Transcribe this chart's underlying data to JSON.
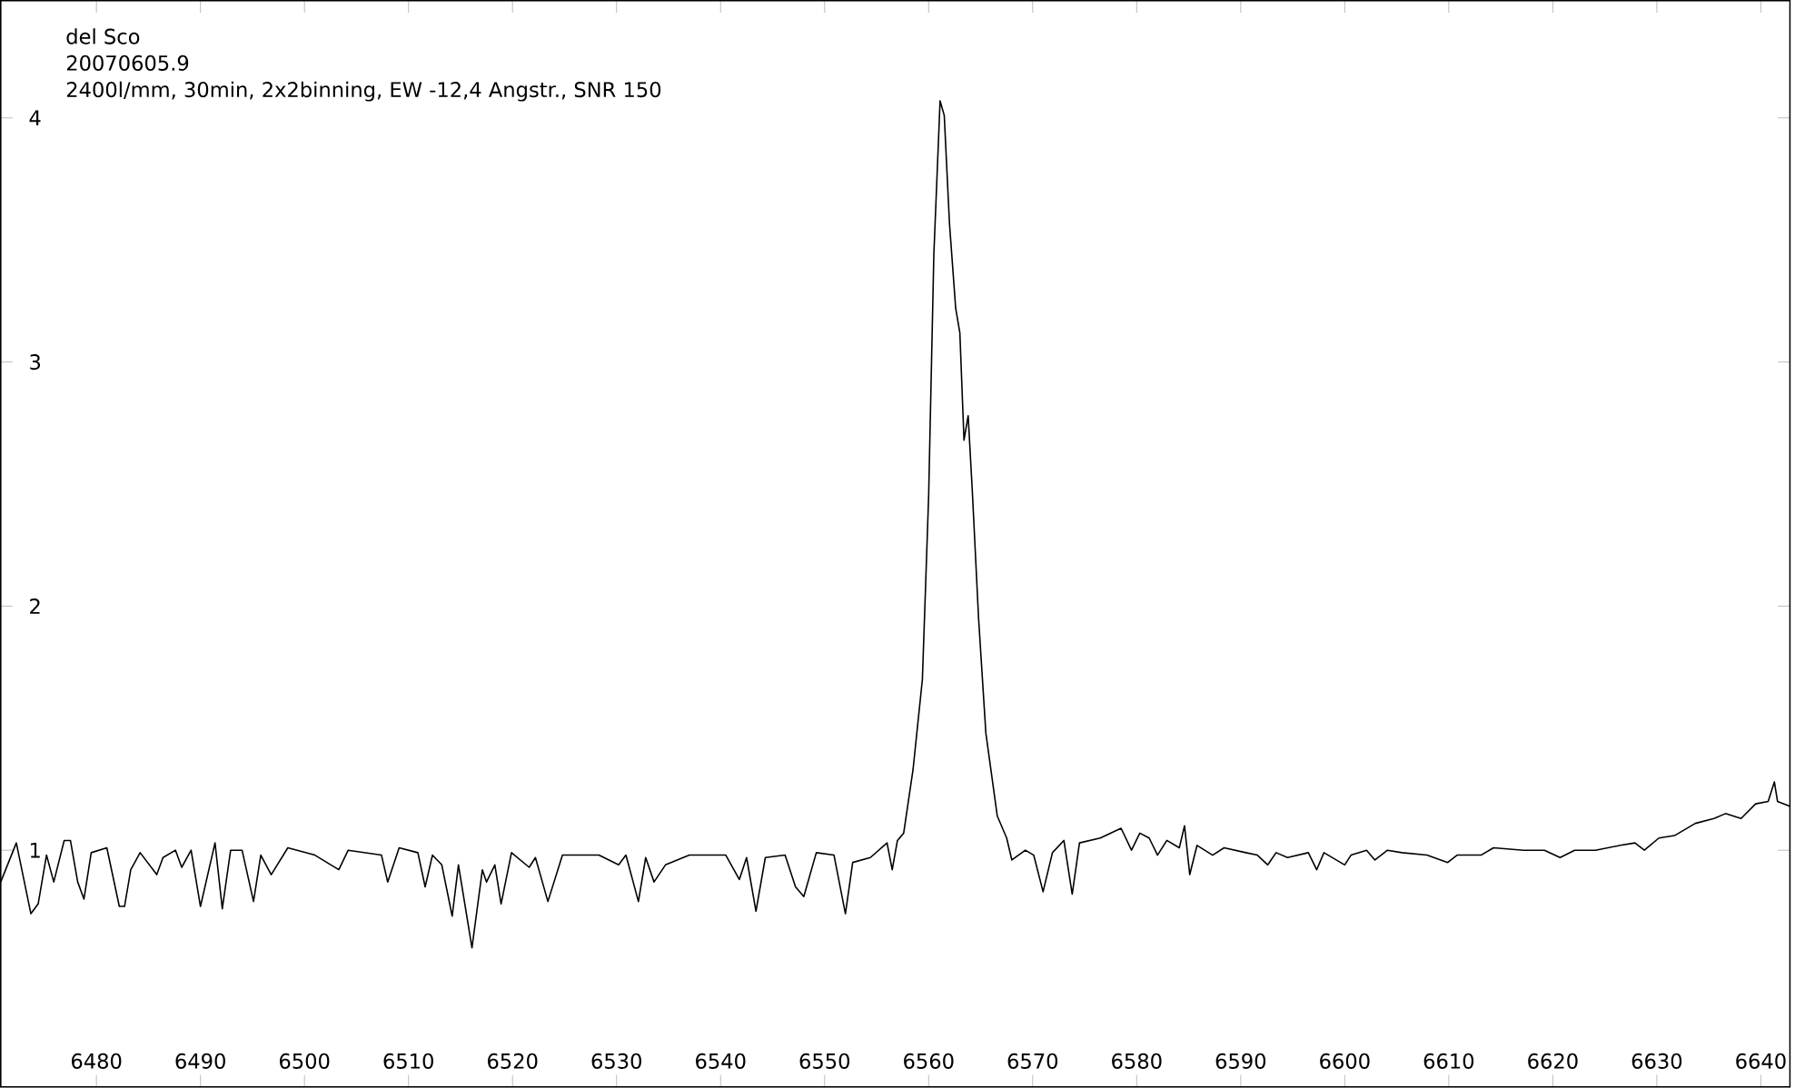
{
  "chart_data": {
    "type": "line",
    "title": "del Sco",
    "subtitle": "20070605.9",
    "annotations": [
      "2400l/mm, 30min, 2x2binning, EW -12,4 Angstr., SNR 150"
    ],
    "xlim": [
      6470.8,
      6642.8
    ],
    "ylim": [
      0.03,
      4.48
    ],
    "xticks": [
      6480,
      6490,
      6500,
      6510,
      6520,
      6530,
      6540,
      6550,
      6560,
      6570,
      6580,
      6590,
      6600,
      6610,
      6620,
      6630,
      6640
    ],
    "yticks": [
      1,
      2,
      3,
      4
    ],
    "marker": "none",
    "line_style": "solid",
    "series": [
      {
        "color": "#000000",
        "x": [
          6470.8,
          6472.3,
          6473.7,
          6474.4,
          6475.2,
          6475.9,
          6476.9,
          6477.5,
          6478.2,
          6478.8,
          6479.5,
          6481.0,
          6482.2,
          6482.7,
          6483.3,
          6484.2,
          6485.8,
          6486.4,
          6487.6,
          6488.2,
          6489.1,
          6490.0,
          6491.4,
          6492.1,
          6492.9,
          6494.0,
          6495.1,
          6495.8,
          6496.8,
          6498.4,
          6501.0,
          6503.3,
          6504.2,
          6507.4,
          6508.0,
          6509.1,
          6510.9,
          6511.6,
          6512.3,
          6513.2,
          6514.2,
          6514.8,
          6516.1,
          6517.1,
          6517.5,
          6518.3,
          6518.9,
          6519.9,
          6521.6,
          6522.2,
          6523.4,
          6524.8,
          6528.3,
          6530.2,
          6530.9,
          6532.1,
          6532.8,
          6533.6,
          6534.7,
          6537.0,
          6540.5,
          6541.8,
          6542.5,
          6543.4,
          6544.3,
          6546.2,
          6547.2,
          6548.0,
          6549.2,
          6550.9,
          6552.0,
          6552.7,
          6554.4,
          6556.0,
          6556.5,
          6557.0,
          6557.6,
          6558.5,
          6559.4,
          6560.0,
          6560.5,
          6561.1,
          6561.5,
          6562.0,
          6562.6,
          6563.0,
          6563.4,
          6563.8,
          6564.2,
          6564.8,
          6565.5,
          6566.6,
          6567.5,
          6568.0,
          6569.3,
          6570.1,
          6571.0,
          6571.9,
          6573.0,
          6573.8,
          6574.5,
          6576.5,
          6578.5,
          6579.5,
          6580.3,
          6581.2,
          6582.0,
          6582.9,
          6584.1,
          6584.6,
          6585.1,
          6585.8,
          6587.3,
          6588.4,
          6590.5,
          6591.6,
          6592.6,
          6593.4,
          6594.5,
          6596.5,
          6597.3,
          6598.0,
          6600.0,
          6600.6,
          6602.1,
          6602.9,
          6604.1,
          6605.5,
          6607.9,
          6609.9,
          6610.8,
          6613.1,
          6614.3,
          6617.2,
          6619.2,
          6620.7,
          6622.1,
          6624.1,
          6626.5,
          6627.9,
          6628.8,
          6630.2,
          6631.7,
          6633.7,
          6635.5,
          6636.6,
          6638.1,
          6639.5,
          6640.7,
          6641.3,
          6641.6,
          6642.8
        ],
        "values": [
          0.87,
          1.03,
          0.74,
          0.78,
          0.98,
          0.87,
          1.04,
          1.04,
          0.87,
          0.8,
          0.99,
          1.01,
          0.77,
          0.77,
          0.92,
          0.99,
          0.9,
          0.97,
          1.0,
          0.93,
          1.0,
          0.77,
          1.03,
          0.76,
          1.0,
          1.0,
          0.79,
          0.98,
          0.9,
          1.01,
          0.98,
          0.92,
          1.0,
          0.98,
          0.87,
          1.01,
          0.99,
          0.85,
          0.98,
          0.94,
          0.73,
          0.94,
          0.6,
          0.92,
          0.87,
          0.94,
          0.78,
          0.99,
          0.93,
          0.97,
          0.79,
          0.98,
          0.98,
          0.94,
          0.98,
          0.79,
          0.97,
          0.87,
          0.94,
          0.98,
          0.98,
          0.88,
          0.97,
          0.75,
          0.97,
          0.98,
          0.85,
          0.81,
          0.99,
          0.98,
          0.74,
          0.95,
          0.97,
          1.03,
          0.92,
          1.04,
          1.07,
          1.33,
          1.7,
          2.45,
          3.44,
          4.07,
          4.01,
          3.57,
          3.22,
          3.12,
          2.68,
          2.78,
          2.47,
          1.95,
          1.48,
          1.14,
          1.05,
          0.96,
          1.0,
          0.98,
          0.83,
          0.99,
          1.04,
          0.82,
          1.03,
          1.05,
          1.09,
          1.0,
          1.07,
          1.05,
          0.98,
          1.04,
          1.01,
          1.1,
          0.9,
          1.02,
          0.98,
          1.01,
          0.99,
          0.98,
          0.94,
          0.99,
          0.97,
          0.99,
          0.92,
          0.99,
          0.94,
          0.98,
          1.0,
          0.96,
          1.0,
          0.99,
          0.98,
          0.95,
          0.98,
          0.98,
          1.01,
          1.0,
          1.0,
          0.97,
          1.0,
          1.0,
          1.02,
          1.03,
          1.0,
          1.05,
          1.06,
          1.11,
          1.13,
          1.15,
          1.13,
          1.19,
          1.2,
          1.28,
          1.2,
          1.18
        ]
      }
    ]
  }
}
